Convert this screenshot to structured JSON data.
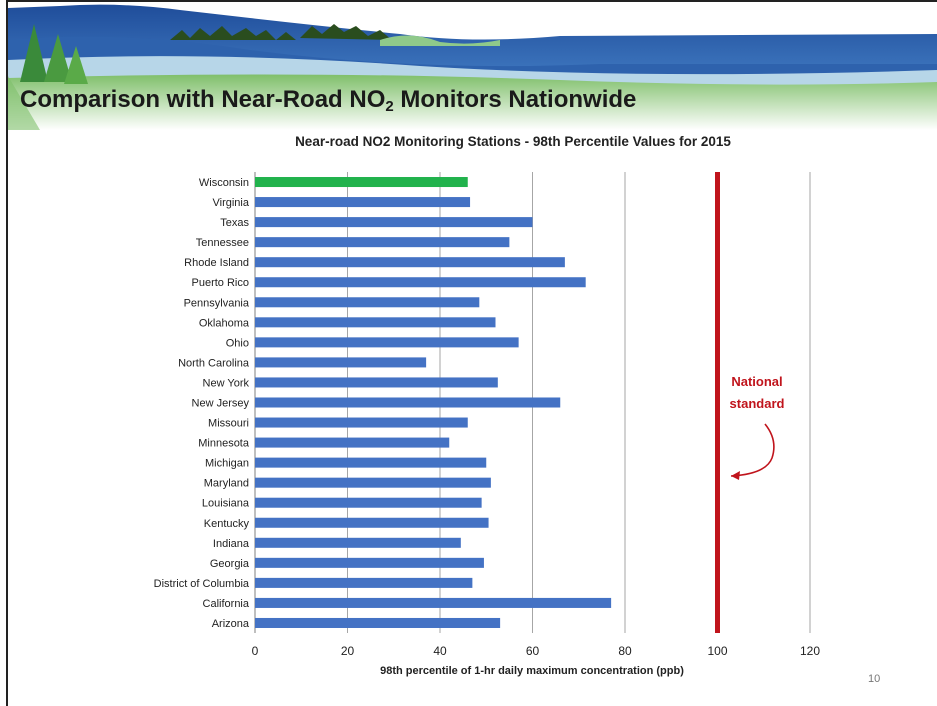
{
  "slide": {
    "title_main": "Comparison with Near-Road NO",
    "title_sub": "2",
    "title_tail": " Monitors Nationwide",
    "page_number": "10"
  },
  "colors": {
    "bar": "#4472c4",
    "highlight": "#21b24c",
    "standard": "#c0141c",
    "grid": "#a6a6a6"
  },
  "chart_data": {
    "type": "bar",
    "orientation": "horizontal",
    "title": "Near-road NO2 Monitoring Stations - 98th Percentile Values for 2015",
    "xlabel": "98th percentile of 1-hr daily maximum concentration (ppb)",
    "ylabel": "",
    "xlim": [
      0,
      120
    ],
    "xticks": [
      0,
      20,
      40,
      60,
      80,
      100,
      120
    ],
    "grid": true,
    "categories": [
      "Wisconsin",
      "Virginia",
      "Texas",
      "Tennessee",
      "Rhode Island",
      "Puerto Rico",
      "Pennsylvania",
      "Oklahoma",
      "Ohio",
      "North Carolina",
      "New York",
      "New Jersey",
      "Missouri",
      "Minnesota",
      "Michigan",
      "Maryland",
      "Louisiana",
      "Kentucky",
      "Indiana",
      "Georgia",
      "District of Columbia",
      "California",
      "Arizona"
    ],
    "values": [
      46,
      46.5,
      60,
      55,
      67,
      71.5,
      48.5,
      52,
      57,
      37,
      52.5,
      66,
      46,
      42,
      50,
      51,
      49,
      50.5,
      44.5,
      49.5,
      47,
      77,
      53
    ],
    "highlight": "Wisconsin",
    "reference_line": {
      "value": 100,
      "label_line1": "National",
      "label_line2": "standard"
    }
  }
}
